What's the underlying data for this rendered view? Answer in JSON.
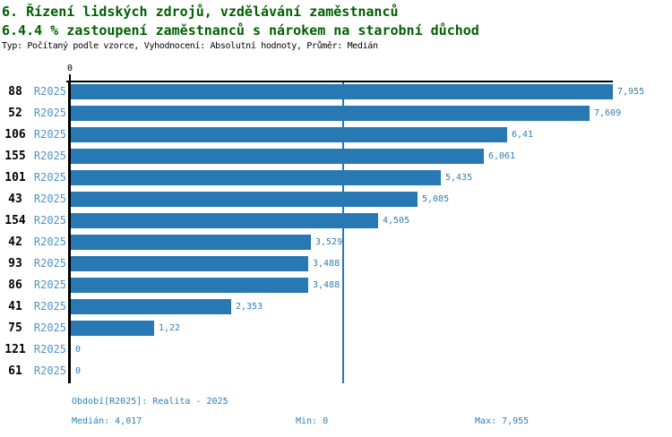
{
  "header": {
    "title": "6. Řízení lidských zdrojů, vzdělávání zaměstnanců",
    "subtitle": "6.4.4 % zastoupení zaměstnanců s nárokem na starobní důchod",
    "meta": "Typ: Počítaný podle vzorce, Vyhodnocení: Absolutní hodnoty, Průměr: Medián"
  },
  "chart_data": {
    "type": "bar",
    "orientation": "horizontal",
    "title": "6.4.4 % zastoupení zaměstnanců s nárokem na starobní důchod",
    "categories": [
      "88",
      "52",
      "106",
      "155",
      "101",
      "43",
      "154",
      "42",
      "93",
      "86",
      "41",
      "75",
      "121",
      "61"
    ],
    "series_label": "R2025",
    "values": [
      7.955,
      7.609,
      6.41,
      6.061,
      5.435,
      5.085,
      4.505,
      3.529,
      3.488,
      3.488,
      2.353,
      1.22,
      0,
      0
    ],
    "value_labels": [
      "7,955",
      "7,609",
      "6,41",
      "6,061",
      "5,435",
      "5,085",
      "4,505",
      "3,529",
      "3,488",
      "3,488",
      "2,353",
      "1,22",
      "0",
      "0"
    ],
    "xlim": [
      0,
      7.955
    ],
    "x_axis_tick": "0",
    "median": {
      "value": 4.017,
      "label": "4,017"
    },
    "min": 0,
    "max": 7.955,
    "grid": false,
    "legend": false
  },
  "footer": {
    "period": "Období[R2025]: Realita - 2025",
    "median": "Medián: 4,017",
    "min": "Min: 0",
    "max": "Max: 7,955"
  },
  "colors": {
    "bar": "#2878B4",
    "median_line": "#2878B4",
    "series_label_text": "#4D95CB",
    "value_text": "#2E7EB4",
    "footer_text": "#2E7EB4",
    "title_text": "#005F00",
    "axis": "#000000"
  }
}
